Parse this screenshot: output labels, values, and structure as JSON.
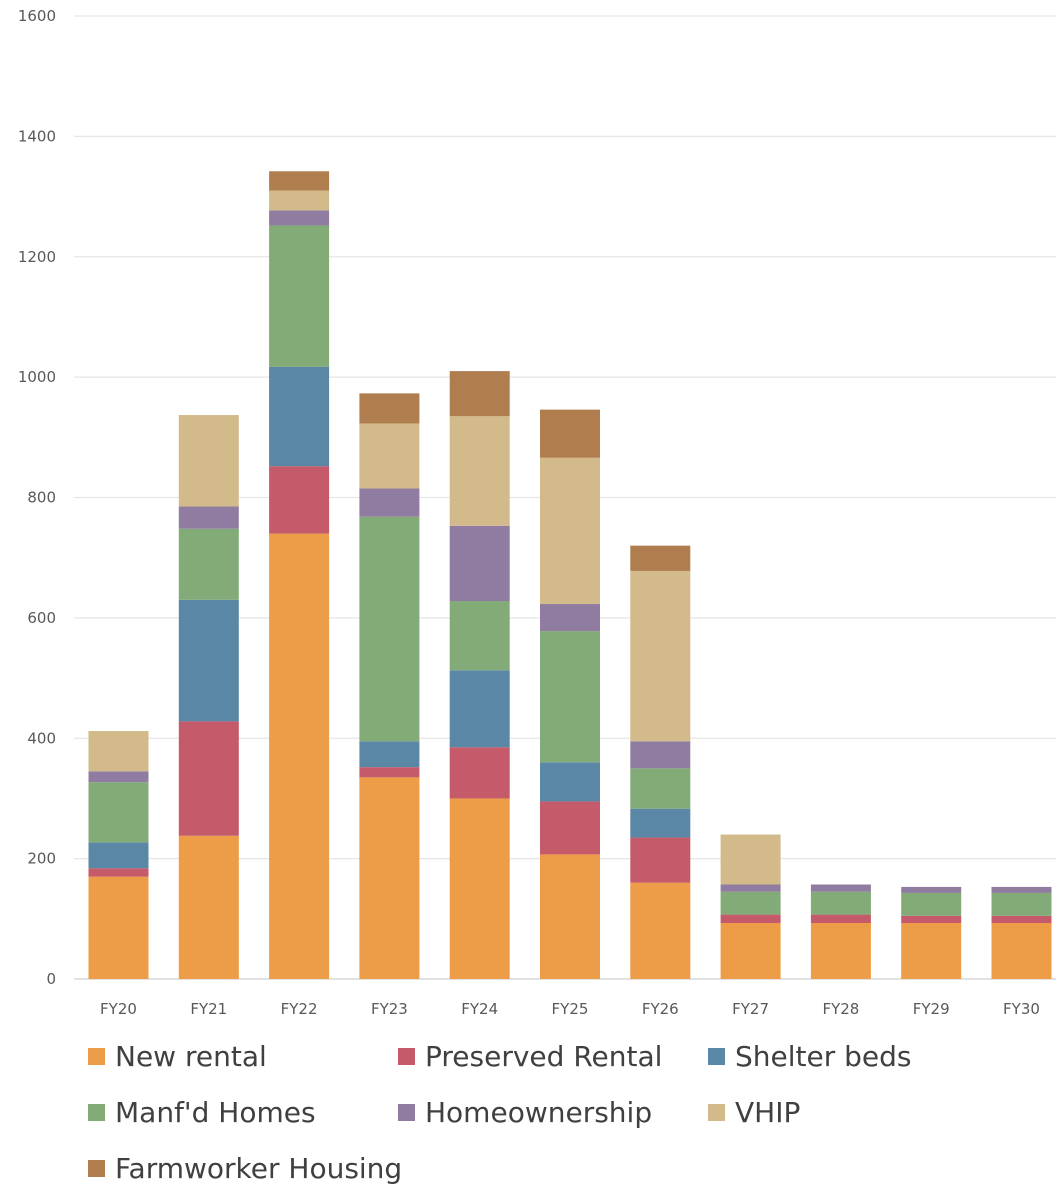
{
  "chart_data": {
    "type": "bar",
    "stacked": true,
    "categories": [
      "FY20",
      "FY21",
      "FY22",
      "FY23",
      "FY24",
      "FY25",
      "FY26",
      "FY27",
      "FY28",
      "FY29",
      "FY30"
    ],
    "ylim": [
      0,
      1600
    ],
    "yticks": [
      "0",
      "200",
      "400",
      "600",
      "800",
      "1000",
      "1200",
      "1400",
      "1600"
    ],
    "grid": true,
    "legend_position": "bottom",
    "series": [
      {
        "name": "New rental",
        "color": "#ed9c47",
        "values": [
          170,
          238,
          740,
          335,
          300,
          207,
          160,
          93,
          93,
          93,
          93
        ]
      },
      {
        "name": "Preserved Rental",
        "color": "#c55a6a",
        "values": [
          14,
          190,
          112,
          17,
          85,
          88,
          75,
          14,
          14,
          12,
          12
        ]
      },
      {
        "name": "Shelter beds",
        "color": "#5a87a6",
        "values": [
          43,
          202,
          165,
          43,
          128,
          65,
          48,
          0,
          0,
          0,
          0
        ]
      },
      {
        "name": "Manf'd Homes",
        "color": "#82ab78",
        "values": [
          100,
          118,
          235,
          373,
          115,
          218,
          67,
          38,
          38,
          38,
          38
        ]
      },
      {
        "name": "Homeownership",
        "color": "#8f7ca0",
        "values": [
          18,
          37,
          25,
          47,
          125,
          45,
          45,
          12,
          12,
          10,
          10
        ]
      },
      {
        "name": "VHIP",
        "color": "#d3ba8b",
        "values": [
          67,
          152,
          33,
          108,
          182,
          243,
          283,
          83,
          0,
          0,
          0
        ]
      },
      {
        "name": "Farmworker Housing",
        "color": "#b07d4f",
        "values": [
          0,
          0,
          32,
          50,
          75,
          80,
          42,
          0,
          0,
          0,
          0
        ]
      }
    ]
  }
}
